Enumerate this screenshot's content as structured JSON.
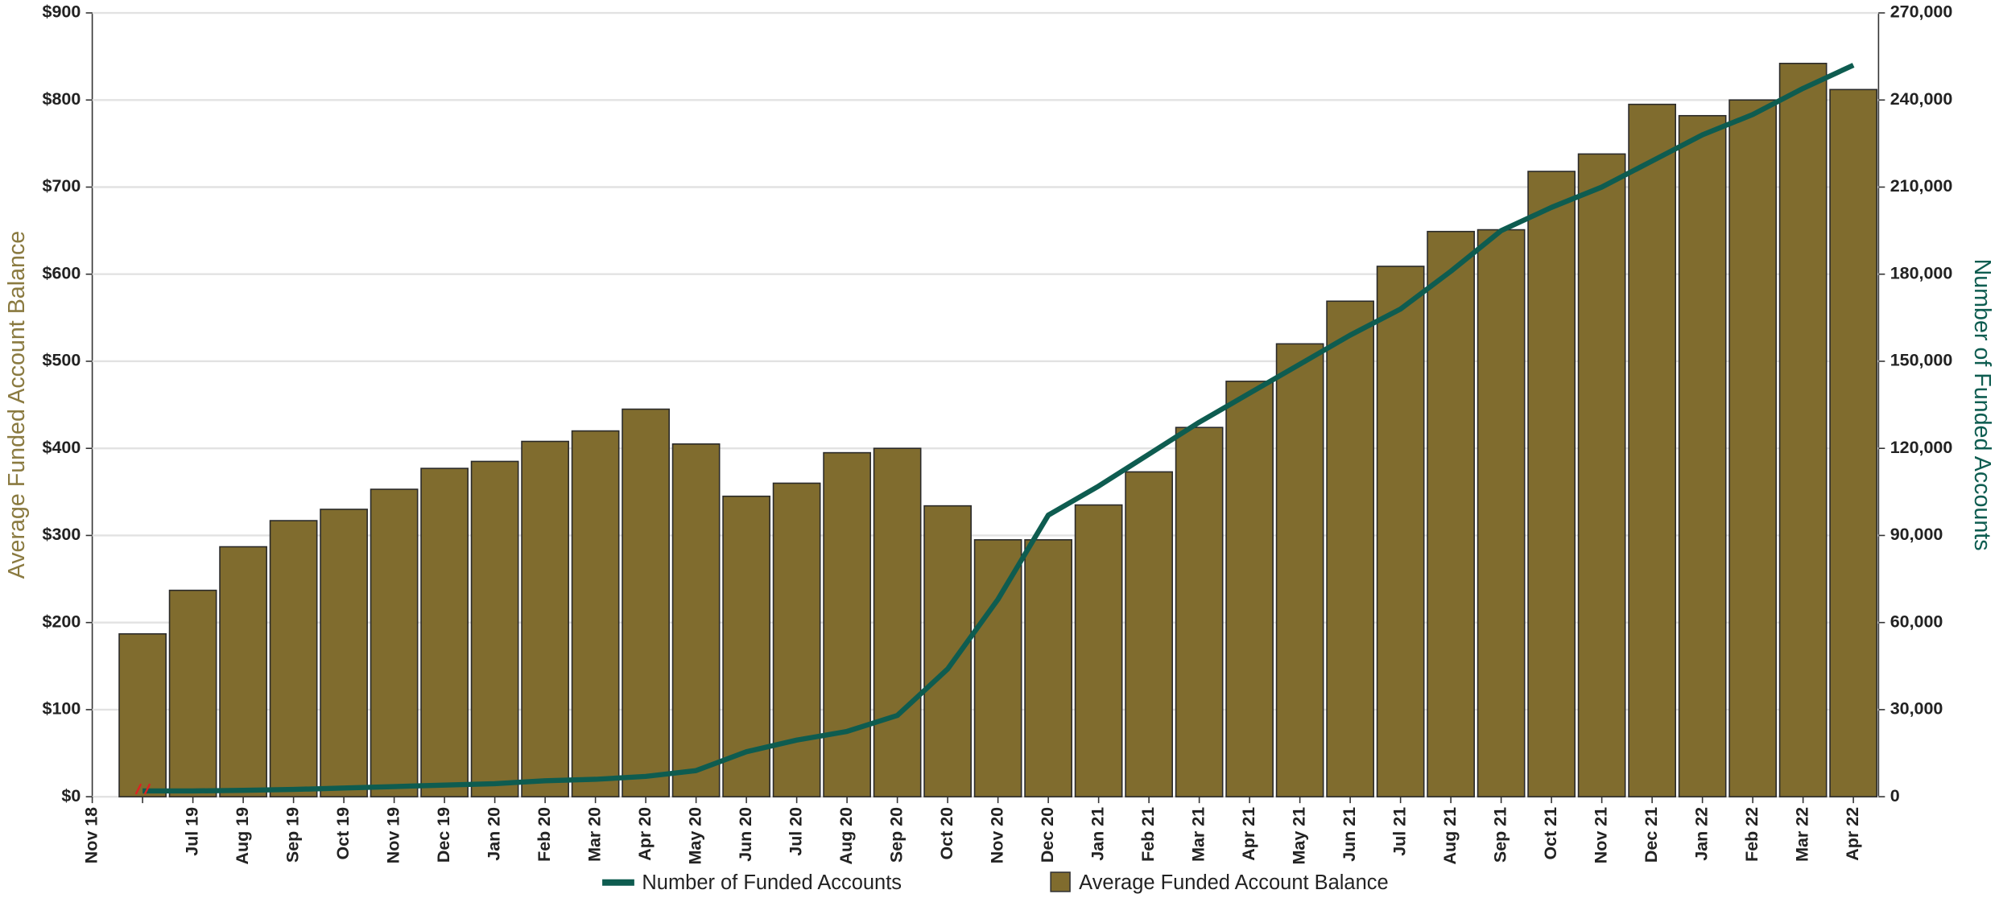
{
  "chart_data": {
    "type": "bar-line",
    "categories": [
      "Nov 18",
      null,
      "Jul 19",
      "Aug 19",
      "Sep 19",
      "Oct 19",
      "Nov 19",
      "Dec 19",
      "Jan 20",
      "Feb 20",
      "Mar 20",
      "Apr 20",
      "May 20",
      "Jun 20",
      "Jul 20",
      "Aug 20",
      "Sep 20",
      "Oct 20",
      "Nov 20",
      "Dec 20",
      "Jan 21",
      "Feb 21",
      "Mar 21",
      "Apr 21",
      "May 21",
      "Jun 21",
      "Jul 21",
      "Aug 21",
      "Sep 21",
      "Oct 21",
      "Nov 21",
      "Dec 21",
      "Jan 22",
      "Feb 22",
      "Mar 22",
      "Apr 22"
    ],
    "series": [
      {
        "name": "Number of Funded Accounts",
        "type": "line",
        "axis": "y2",
        "color": "#0e5c50",
        "values": [
          null,
          2000,
          2000,
          2200,
          2500,
          3000,
          3500,
          4000,
          4500,
          5500,
          6000,
          7000,
          9000,
          15500,
          19500,
          22500,
          28000,
          44000,
          68000,
          97000,
          107000,
          118000,
          129000,
          139000,
          149000,
          159000,
          168000,
          181000,
          195000,
          203000,
          210000,
          219000,
          228000,
          235000,
          244000,
          252000
        ]
      },
      {
        "name": "Average Funded Account Balance",
        "type": "bar",
        "color": "#806c2e",
        "values": [
          null,
          187,
          237,
          287,
          317,
          330,
          353,
          377,
          385,
          408,
          420,
          445,
          405,
          345,
          360,
          395,
          400,
          334,
          295,
          295,
          335,
          373,
          424,
          477,
          520,
          569,
          609,
          649,
          651,
          718,
          738,
          795,
          782,
          800,
          842,
          812
        ]
      }
    ],
    "y_label": "Average Funded Account Balance",
    "y2_label": "Number of Funded Accounts",
    "ylim": [
      0,
      900
    ],
    "yticks": [
      {
        "value": 0,
        "label": "$0"
      },
      {
        "value": 100,
        "label": "$100"
      },
      {
        "value": 200,
        "label": "$200"
      },
      {
        "value": 300,
        "label": "$300"
      },
      {
        "value": 400,
        "label": "$400"
      },
      {
        "value": 500,
        "label": "$500"
      },
      {
        "value": 600,
        "label": "$600"
      },
      {
        "value": 700,
        "label": "$700"
      },
      {
        "value": 800,
        "label": "$800"
      },
      {
        "value": 900,
        "label": "$900"
      }
    ],
    "y2lim": [
      0,
      270000
    ],
    "y2ticks": [
      0,
      {
        "value": 30000,
        "label": "30,000"
      },
      {
        "value": 60000,
        "label": "60,000"
      },
      {
        "value": 90000,
        "label": "90,000"
      },
      {
        "value": 120000,
        "label": "120,000"
      },
      {
        "value": 150000,
        "label": "150,000"
      },
      {
        "value": 180000,
        "label": "180,000"
      },
      {
        "value": 210000,
        "label": "210,000"
      },
      {
        "value": 240000,
        "label": "240,000"
      },
      {
        "value": 270000,
        "label": "270,000"
      }
    ],
    "grid": true,
    "legend": "bottom"
  }
}
